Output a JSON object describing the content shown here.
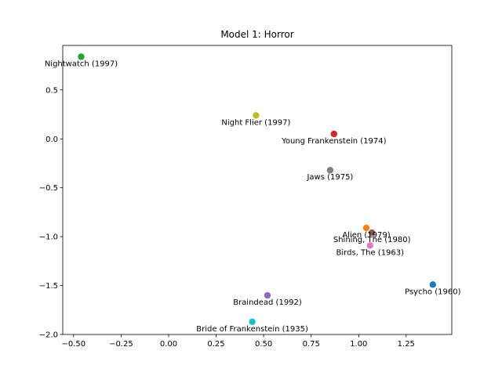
{
  "chart_data": {
    "type": "scatter",
    "title": "Model 1: Horror",
    "xlabel": "",
    "ylabel": "",
    "xlim": [
      -0.557,
      1.49
    ],
    "ylim": [
      -2.0,
      0.955
    ],
    "x_ticks": [
      -0.5,
      -0.25,
      0.0,
      0.25,
      0.5,
      0.75,
      1.0,
      1.25
    ],
    "x_tick_labels": [
      "−0.50",
      "−0.25",
      "0.00",
      "0.25",
      "0.50",
      "0.75",
      "1.00",
      "1.25"
    ],
    "y_ticks": [
      0.5,
      0.0,
      -0.5,
      -1.0,
      -1.5,
      -2.0
    ],
    "y_tick_labels": [
      "0.5",
      "0.0",
      "−0.5",
      "−1.0",
      "−1.5",
      "−2.0"
    ],
    "grid": false,
    "legend": "none",
    "points": [
      {
        "label": "Psycho (1960)",
        "x": 1.39,
        "y": -1.49,
        "color": "#1f77b4"
      },
      {
        "label": "Alien (1979)",
        "x": 1.04,
        "y": -0.91,
        "color": "#ff7f0e"
      },
      {
        "label": "Nightwatch (1997)",
        "x": -0.46,
        "y": 0.84,
        "color": "#2ca02c"
      },
      {
        "label": "Young Frankenstein (1974)",
        "x": 0.87,
        "y": 0.05,
        "color": "#d62728"
      },
      {
        "label": "Braindead (1992)",
        "x": 0.52,
        "y": -1.6,
        "color": "#9467bd"
      },
      {
        "label": "Shining, The (1980)",
        "x": 1.07,
        "y": -0.96,
        "color": "#8c564b"
      },
      {
        "label": "Birds, The (1963)",
        "x": 1.06,
        "y": -1.09,
        "color": "#e377c2"
      },
      {
        "label": "Jaws (1975)",
        "x": 0.85,
        "y": -0.32,
        "color": "#7f7f7f"
      },
      {
        "label": "Night Flier (1997)",
        "x": 0.46,
        "y": 0.24,
        "color": "#bcbd22"
      },
      {
        "label": "Bride of Frankenstein (1935)",
        "x": 0.44,
        "y": -1.87,
        "color": "#17becf"
      }
    ]
  }
}
